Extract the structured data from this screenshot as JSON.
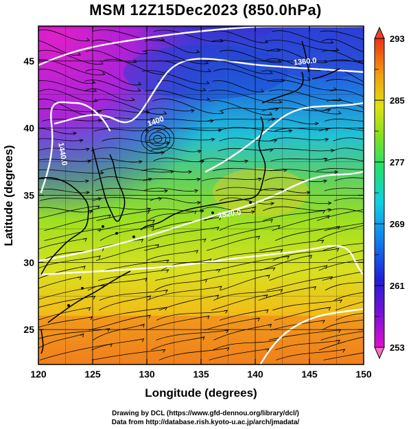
{
  "title": "MSM 12Z15Dec2023 (850.0hPa)",
  "map": {
    "xlabel": "Longitude (degrees)",
    "ylabel": "Latitude  (degrees)",
    "x_ticks": [
      "120",
      "125",
      "130",
      "135",
      "140",
      "145",
      "150"
    ],
    "y_ticks": [
      "25",
      "30",
      "35",
      "40",
      "45"
    ],
    "x_range": [
      120,
      150
    ],
    "y_range": [
      22.4,
      47.6
    ],
    "contour_labels": [
      "1360.0",
      "1400",
      "1440.0",
      "1520.0"
    ]
  },
  "colorbar": {
    "labels": [
      "293",
      "285",
      "277",
      "269",
      "261",
      "253"
    ],
    "min": 253,
    "max": 293
  },
  "credits": {
    "line1": "Drawing by DCL (https://www.gfd-dennou.org/library/dcl/)",
    "line2": "Data from http://database.rish.kyoto-u.ac.jp/arch/jmadata/"
  },
  "colors": {
    "cold": "#e020c8",
    "cool": "#3a30d0",
    "mid": "#20d0d0",
    "warm": "#90e010",
    "hot": "#f08010",
    "contour": "#ffffff"
  }
}
